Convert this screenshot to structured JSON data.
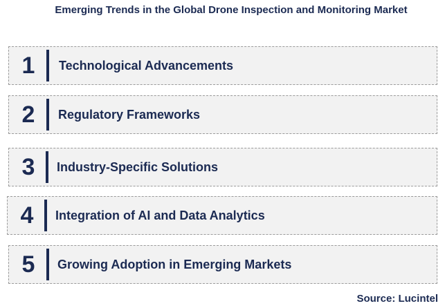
{
  "title": "Emerging Trends in the Global Drone Inspection and Monitoring Market",
  "trends": [
    {
      "number": "1",
      "label": "Technological Advancements"
    },
    {
      "number": "2",
      "label": "Regulatory Frameworks"
    },
    {
      "number": "3",
      "label": "Industry-Specific Solutions"
    },
    {
      "number": "4",
      "label": "Integration of AI and Data Analytics"
    },
    {
      "number": "5",
      "label": "Growing Adoption in Emerging Markets"
    }
  ],
  "source": "Source: Lucintel",
  "colors": {
    "text": "#1b2a52",
    "box_fill": "#f2f2f2",
    "box_border": "#9a9a9a"
  }
}
